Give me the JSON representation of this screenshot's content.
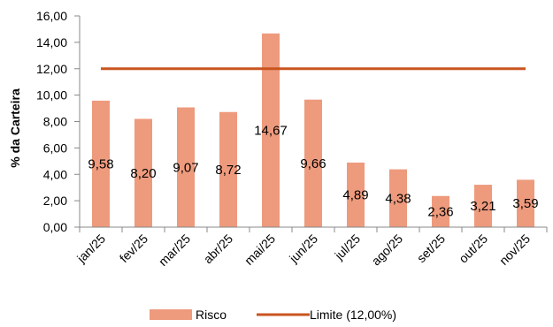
{
  "chart_data": {
    "type": "bar",
    "categories": [
      "jan/25",
      "fev/25",
      "mar/25",
      "abr/25",
      "mai/25",
      "jun/25",
      "jul/25",
      "ago/25",
      "set/25",
      "out/25",
      "nov/25"
    ],
    "series": [
      {
        "name": "Risco",
        "type": "bar",
        "color": "#EE9A7D",
        "values": [
          9.58,
          8.2,
          9.07,
          8.72,
          14.67,
          9.66,
          4.89,
          4.38,
          2.36,
          3.21,
          3.59
        ],
        "data_labels": [
          "9,58",
          "8,20",
          "9,07",
          "8,72",
          "14,67",
          "9,66",
          "4,89",
          "4,38",
          "2,36",
          "3,21",
          "3,59"
        ]
      },
      {
        "name": "Limite (12,00%)",
        "type": "line",
        "color": "#C9541F",
        "values": [
          12,
          12,
          12,
          12,
          12,
          12,
          12,
          12,
          12,
          12,
          12
        ]
      }
    ],
    "ylabel": "% da Carteira",
    "ylim": [
      0,
      16
    ],
    "yticks": [
      "0,00",
      "2,00",
      "4,00",
      "6,00",
      "8,00",
      "10,00",
      "12,00",
      "14,00",
      "16,00"
    ],
    "grid": false,
    "legend_position": "bottom"
  }
}
